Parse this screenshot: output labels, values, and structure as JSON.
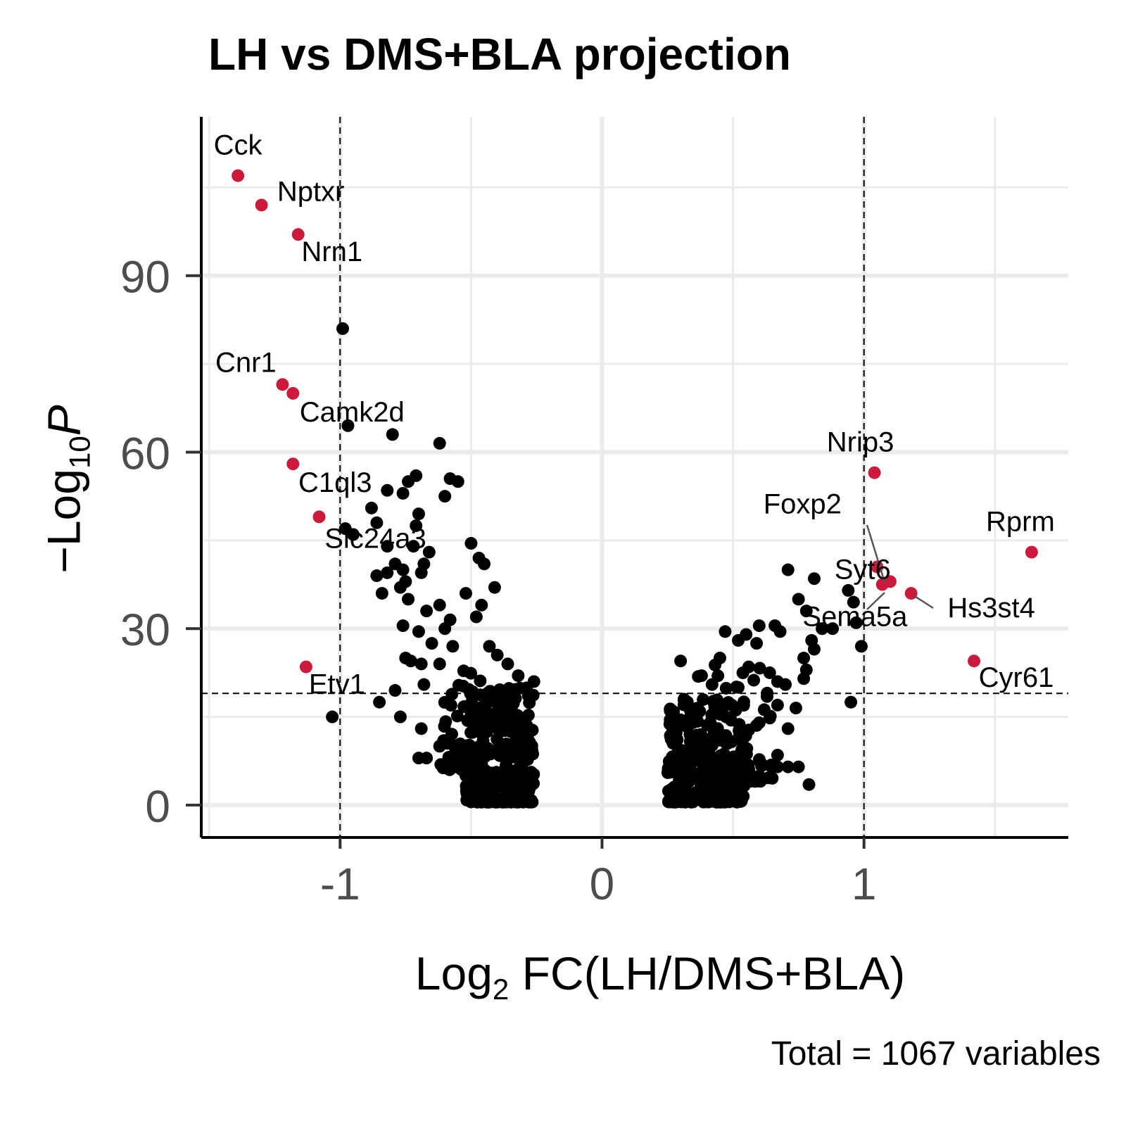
{
  "chart_data": {
    "type": "scatter",
    "title": "LH vs DMS+BLA projection",
    "xlabel": {
      "base": "Log",
      "sub": "2",
      "rest": " FC(LH/DMS+BLA)"
    },
    "ylabel": {
      "prefix": "−Log",
      "sub": "10",
      "var": "P"
    },
    "caption": "Total = 1067 variables",
    "xlim": [
      -1.53,
      1.78
    ],
    "ylim": [
      -5.5,
      117
    ],
    "x_ticks": [
      -1,
      0,
      1
    ],
    "x_tick_labels": [
      "-1",
      "0",
      "1"
    ],
    "y_ticks": [
      0,
      30,
      60,
      90
    ],
    "y_tick_labels": [
      "0",
      "30",
      "60",
      "90"
    ],
    "thresholds": {
      "log2fc": [
        -1,
        1
      ],
      "neg_log10_p": 19
    },
    "grid": true,
    "legend": "none",
    "colors": {
      "significant": "#cc1a3d",
      "other": "#000000",
      "tick_text": "#4d4d4d"
    },
    "labeled_genes": [
      {
        "name": "Cck",
        "x": -1.39,
        "y": 107
      },
      {
        "name": "Nptxr",
        "x": -1.3,
        "y": 102
      },
      {
        "name": "Nrn1",
        "x": -1.16,
        "y": 97
      },
      {
        "name": "Cnr1",
        "x": -1.22,
        "y": 71.5
      },
      {
        "name": "Camk2d",
        "x": -1.18,
        "y": 70
      },
      {
        "name": "C1ql3",
        "x": -1.18,
        "y": 58
      },
      {
        "name": "Slc24a3",
        "x": -1.08,
        "y": 49
      },
      {
        "name": "Etv1",
        "x": -1.13,
        "y": 23.5
      },
      {
        "name": "Nrip3",
        "x": 1.04,
        "y": 56.5
      },
      {
        "name": "Foxp2",
        "x": 1.05,
        "y": 40.5
      },
      {
        "name": "Syt6",
        "x": 1.07,
        "y": 37.5
      },
      {
        "name": "Sema5a",
        "x": 1.1,
        "y": 38
      },
      {
        "name": "Hs3st4",
        "x": 1.18,
        "y": 36
      },
      {
        "name": "Rprm",
        "x": 1.64,
        "y": 43
      },
      {
        "name": "Cyr61",
        "x": 1.42,
        "y": 24.5
      }
    ],
    "black_points_anchor": [
      [
        -0.99,
        81
      ],
      [
        -0.97,
        64.5
      ],
      [
        -0.8,
        63
      ],
      [
        -0.62,
        61.5
      ],
      [
        -0.58,
        55.5
      ],
      [
        -0.55,
        55
      ],
      [
        -0.71,
        56
      ],
      [
        -0.74,
        55
      ],
      [
        -0.76,
        53
      ],
      [
        -0.82,
        53.5
      ],
      [
        -0.88,
        50.5
      ],
      [
        -0.6,
        52.5
      ],
      [
        -0.7,
        49.5
      ],
      [
        -0.86,
        48
      ],
      [
        -0.71,
        47.5
      ],
      [
        -0.98,
        47
      ],
      [
        -0.95,
        46
      ],
      [
        -0.82,
        44
      ],
      [
        -0.72,
        44
      ],
      [
        -0.5,
        44.5
      ],
      [
        -0.47,
        42
      ],
      [
        -0.45,
        41
      ],
      [
        -0.41,
        37
      ],
      [
        -0.66,
        43
      ],
      [
        -0.79,
        41
      ],
      [
        -0.76,
        40
      ],
      [
        -0.69,
        39.5
      ],
      [
        -0.68,
        41
      ],
      [
        -0.82,
        39.5
      ],
      [
        -0.86,
        39
      ],
      [
        -0.75,
        38
      ],
      [
        -0.77,
        37
      ],
      [
        -0.84,
        36
      ],
      [
        -0.74,
        35
      ],
      [
        -0.52,
        36
      ],
      [
        -0.62,
        34
      ],
      [
        -0.67,
        33
      ],
      [
        -0.46,
        34
      ],
      [
        -0.48,
        32
      ],
      [
        -0.58,
        31.5
      ],
      [
        -0.76,
        30.5
      ],
      [
        -0.7,
        29.5
      ],
      [
        -0.6,
        30
      ],
      [
        -0.65,
        27.5
      ],
      [
        -0.57,
        27
      ],
      [
        -0.43,
        27
      ],
      [
        -0.4,
        25.5
      ],
      [
        -0.75,
        25
      ],
      [
        -0.73,
        24.5
      ],
      [
        -0.62,
        24
      ],
      [
        -0.69,
        24
      ],
      [
        -0.36,
        24
      ],
      [
        -0.32,
        22
      ],
      [
        -0.26,
        21
      ],
      [
        -0.68,
        20.5
      ],
      [
        -0.79,
        19.5
      ],
      [
        -0.85,
        17.5
      ],
      [
        -0.77,
        15
      ],
      [
        -1.03,
        15
      ],
      [
        -0.69,
        13
      ],
      [
        -0.62,
        10
      ],
      [
        -0.59,
        10.5
      ],
      [
        -0.7,
        8
      ],
      [
        -0.67,
        8
      ],
      [
        -0.46,
        8
      ],
      [
        -0.52,
        5
      ],
      [
        -0.48,
        5
      ],
      [
        -0.46,
        0.5
      ],
      [
        -0.4,
        0.5
      ],
      [
        -0.32,
        0.5
      ],
      [
        -0.27,
        0.5
      ],
      [
        0.71,
        40
      ],
      [
        0.81,
        38.5
      ],
      [
        0.75,
        35
      ],
      [
        0.78,
        33
      ],
      [
        0.97,
        31
      ],
      [
        0.94,
        36.5
      ],
      [
        0.96,
        34.5
      ],
      [
        0.99,
        27
      ],
      [
        0.95,
        17.5
      ],
      [
        0.66,
        30.5
      ],
      [
        0.6,
        30.5
      ],
      [
        0.55,
        29
      ],
      [
        0.47,
        29.5
      ],
      [
        0.52,
        28
      ],
      [
        0.59,
        27.5
      ],
      [
        0.68,
        29.5
      ],
      [
        0.8,
        28
      ],
      [
        0.84,
        30
      ],
      [
        0.88,
        30
      ],
      [
        0.81,
        26.5
      ],
      [
        0.77,
        25
      ],
      [
        0.78,
        23
      ],
      [
        0.77,
        21.5
      ],
      [
        0.3,
        24.5
      ],
      [
        0.45,
        25
      ],
      [
        0.56,
        23.5
      ],
      [
        0.64,
        22.5
      ],
      [
        0.67,
        21
      ],
      [
        0.38,
        22
      ],
      [
        0.42,
        20.5
      ],
      [
        0.52,
        20
      ],
      [
        0.7,
        20.5
      ],
      [
        0.67,
        17
      ],
      [
        0.71,
        13
      ],
      [
        0.74,
        16.5
      ],
      [
        0.6,
        14
      ],
      [
        0.53,
        12
      ],
      [
        0.67,
        8.5
      ],
      [
        0.67,
        6.5
      ],
      [
        0.71,
        6.5
      ],
      [
        0.75,
        6.5
      ],
      [
        0.79,
        3.5
      ],
      [
        0.5,
        4
      ],
      [
        0.4,
        3
      ],
      [
        0.45,
        0.5
      ],
      [
        0.34,
        0.5
      ],
      [
        0.28,
        0.5
      ],
      [
        0.3,
        14.5
      ],
      [
        0.26,
        14.5
      ]
    ],
    "black_clusters": [
      {
        "x_range": [
          -0.52,
          -0.26
        ],
        "y_range": [
          0.5,
          20
        ],
        "count": 300
      },
      {
        "x_range": [
          -0.62,
          -0.45
        ],
        "y_range": [
          6,
          24
        ],
        "count": 60
      },
      {
        "x_range": [
          0.25,
          0.55
        ],
        "y_range": [
          0.5,
          19
        ],
        "count": 260
      },
      {
        "x_range": [
          0.35,
          0.65
        ],
        "y_range": [
          4,
          24
        ],
        "count": 70
      }
    ]
  }
}
